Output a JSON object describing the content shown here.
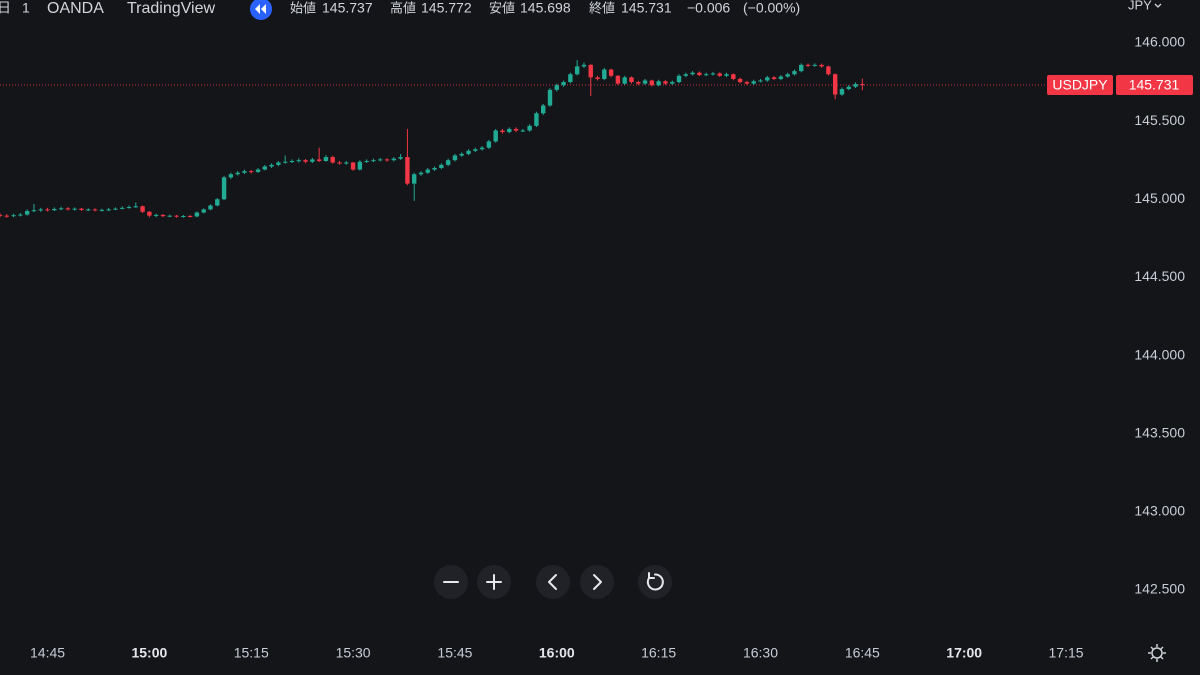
{
  "chart_data": {
    "type": "candlestick",
    "period": "日",
    "interval": "1",
    "exchange": "OANDA",
    "source": "TradingView",
    "symbol": "USDJPY",
    "currency": "JPY",
    "open_label": "始値",
    "high_label": "高値",
    "low_label": "安値",
    "close_label": "終値",
    "change": "−0.006",
    "change_percent": "(−0.00%)",
    "up_color": "#22ab94",
    "down_color": "#f23645",
    "grid": false,
    "ylim": [
      142.212,
      146.275
    ],
    "yticks": [
      {
        "value": 142.5,
        "label": "142.500"
      },
      {
        "value": 143,
        "label": "143.000"
      },
      {
        "value": 143.5,
        "label": "143.500"
      },
      {
        "value": 144,
        "label": "144.000"
      },
      {
        "value": 144.5,
        "label": "144.500"
      },
      {
        "value": 145,
        "label": "145.000"
      },
      {
        "value": 145.5,
        "label": "145.500"
      },
      {
        "value": 146,
        "label": "146.000"
      }
    ],
    "xlim": [
      "14:38",
      "17:20"
    ],
    "xticks": [
      "14:45",
      "15:00",
      "15:15",
      "15:30",
      "15:45",
      "16:00",
      "16:15",
      "16:30",
      "16:45",
      "17:00",
      "17:15"
    ],
    "x": [
      "14:38",
      "14:39",
      "14:40",
      "14:41",
      "14:42",
      "14:43",
      "14:44",
      "14:45",
      "14:46",
      "14:47",
      "14:48",
      "14:49",
      "14:50",
      "14:51",
      "14:52",
      "14:53",
      "14:54",
      "14:55",
      "14:56",
      "14:57",
      "14:58",
      "14:59",
      "15:00",
      "15:01",
      "15:02",
      "15:03",
      "15:04",
      "15:05",
      "15:06",
      "15:07",
      "15:08",
      "15:09",
      "15:10",
      "15:11",
      "15:12",
      "15:13",
      "15:14",
      "15:15",
      "15:16",
      "15:17",
      "15:18",
      "15:19",
      "15:20",
      "15:21",
      "15:22",
      "15:23",
      "15:24",
      "15:25",
      "15:26",
      "15:27",
      "15:28",
      "15:29",
      "15:30",
      "15:31",
      "15:32",
      "15:33",
      "15:34",
      "15:35",
      "15:36",
      "15:37",
      "15:38",
      "15:39",
      "15:40",
      "15:41",
      "15:42",
      "15:43",
      "15:44",
      "15:45",
      "15:46",
      "15:47",
      "15:48",
      "15:49",
      "15:50",
      "15:51",
      "15:52",
      "15:53",
      "15:54",
      "15:55",
      "15:56",
      "15:57",
      "15:58",
      "15:59",
      "16:00",
      "16:01",
      "16:02",
      "16:03",
      "16:04",
      "16:05",
      "16:06",
      "16:07",
      "16:08",
      "16:09",
      "16:10",
      "16:11",
      "16:12",
      "16:13",
      "16:14",
      "16:15",
      "16:16",
      "16:17",
      "16:18",
      "16:19",
      "16:20",
      "16:21",
      "16:22",
      "16:23",
      "16:24",
      "16:25",
      "16:26",
      "16:27",
      "16:28",
      "16:29",
      "16:30",
      "16:31",
      "16:32",
      "16:33",
      "16:34",
      "16:35",
      "16:36",
      "16:37",
      "16:38",
      "16:39",
      "16:40",
      "16:41",
      "16:42",
      "16:43",
      "16:44",
      "16:45"
    ],
    "open": [
      144.9,
      144.895,
      144.892,
      144.898,
      144.902,
      144.925,
      144.93,
      144.935,
      144.93,
      144.938,
      144.942,
      144.935,
      144.94,
      144.932,
      144.935,
      144.93,
      144.932,
      144.935,
      144.94,
      144.945,
      144.95,
      144.955,
      144.92,
      144.895,
      144.9,
      144.892,
      144.895,
      144.89,
      144.893,
      144.89,
      144.915,
      144.935,
      144.96,
      145.0,
      145.14,
      145.16,
      145.17,
      145.18,
      145.175,
      145.19,
      145.21,
      145.22,
      145.235,
      145.24,
      145.245,
      145.25,
      145.24,
      145.255,
      145.245,
      145.27,
      145.235,
      145.23,
      145.235,
      145.19,
      145.24,
      145.245,
      145.25,
      145.255,
      145.25,
      145.26,
      145.27,
      145.1,
      145.16,
      145.17,
      145.19,
      145.2,
      145.22,
      145.25,
      145.28,
      145.29,
      145.31,
      145.32,
      145.33,
      145.37,
      145.44,
      145.43,
      145.45,
      145.44,
      145.44,
      145.47,
      145.55,
      145.6,
      145.7,
      145.73,
      145.75,
      145.8,
      145.85,
      145.86,
      145.78,
      145.77,
      145.83,
      145.79,
      145.74,
      145.78,
      145.75,
      145.74,
      145.76,
      145.73,
      145.755,
      145.74,
      145.75,
      145.79,
      145.8,
      145.81,
      145.795,
      145.8,
      145.805,
      145.79,
      145.8,
      145.77,
      145.75,
      145.74,
      145.755,
      145.76,
      145.78,
      145.77,
      145.785,
      145.8,
      145.82,
      145.86,
      145.855,
      145.86,
      145.85,
      145.8,
      145.67,
      145.705,
      145.72,
      145.737
    ],
    "high": [
      144.91,
      144.905,
      144.908,
      144.912,
      144.935,
      144.97,
      144.945,
      144.945,
      144.948,
      144.952,
      144.95,
      144.948,
      144.945,
      144.942,
      144.942,
      144.94,
      144.945,
      144.948,
      144.955,
      144.96,
      144.98,
      144.96,
      144.925,
      144.908,
      144.905,
      144.902,
      144.9,
      144.9,
      144.9,
      144.922,
      144.942,
      144.968,
      145.008,
      145.15,
      145.17,
      145.18,
      145.19,
      145.188,
      145.2,
      145.22,
      145.23,
      145.245,
      145.28,
      145.255,
      145.262,
      145.258,
      145.265,
      145.33,
      145.282,
      145.278,
      145.245,
      145.245,
      145.24,
      145.25,
      145.255,
      145.26,
      145.265,
      145.262,
      145.27,
      145.29,
      145.45,
      145.17,
      145.18,
      145.2,
      145.21,
      145.23,
      145.26,
      145.29,
      145.3,
      145.32,
      145.33,
      145.34,
      145.38,
      145.45,
      145.45,
      145.46,
      145.46,
      145.45,
      145.48,
      145.56,
      145.61,
      145.71,
      145.74,
      145.76,
      145.81,
      145.89,
      145.875,
      145.865,
      145.79,
      145.84,
      145.835,
      145.795,
      145.79,
      145.785,
      145.758,
      145.77,
      145.765,
      145.765,
      145.762,
      145.76,
      145.8,
      145.81,
      145.82,
      145.818,
      145.81,
      145.815,
      145.812,
      145.81,
      145.805,
      145.778,
      145.758,
      145.765,
      145.77,
      145.79,
      145.788,
      145.795,
      145.81,
      145.83,
      145.87,
      145.868,
      145.87,
      145.868,
      145.855,
      145.805,
      145.715,
      145.73,
      145.748,
      145.772
    ],
    "low": [
      144.885,
      144.882,
      144.885,
      144.89,
      144.895,
      144.918,
      144.92,
      144.922,
      144.925,
      144.93,
      144.928,
      144.928,
      144.925,
      144.925,
      144.922,
      144.922,
      144.925,
      144.93,
      144.935,
      144.94,
      144.945,
      144.912,
      144.885,
      144.885,
      144.885,
      144.885,
      144.882,
      144.882,
      144.883,
      144.885,
      144.91,
      144.93,
      144.955,
      144.995,
      145.13,
      145.152,
      145.162,
      145.165,
      145.168,
      145.185,
      145.2,
      145.212,
      145.228,
      145.232,
      145.235,
      145.23,
      145.232,
      145.238,
      145.24,
      145.228,
      145.222,
      145.222,
      145.182,
      145.185,
      145.232,
      145.238,
      145.242,
      145.24,
      145.242,
      145.252,
      145.09,
      144.99,
      145.15,
      145.162,
      145.182,
      145.192,
      145.212,
      145.242,
      145.272,
      145.282,
      145.302,
      145.312,
      145.322,
      145.362,
      145.42,
      145.422,
      145.43,
      145.43,
      145.432,
      145.462,
      145.54,
      145.592,
      145.69,
      145.72,
      145.742,
      145.792,
      145.84,
      145.66,
      145.76,
      145.762,
      145.78,
      145.73,
      145.732,
      145.74,
      145.73,
      145.732,
      145.722,
      145.722,
      145.732,
      145.732,
      145.742,
      145.782,
      145.792,
      145.788,
      145.788,
      145.792,
      145.782,
      145.782,
      145.762,
      145.742,
      145.732,
      145.732,
      145.748,
      145.752,
      145.762,
      145.762,
      145.778,
      145.792,
      145.812,
      145.845,
      145.848,
      145.842,
      145.792,
      145.64,
      145.662,
      145.698,
      145.712,
      145.698
    ],
    "close": [
      144.895,
      144.892,
      144.898,
      144.902,
      144.925,
      144.93,
      144.935,
      144.93,
      144.938,
      144.942,
      144.935,
      144.94,
      144.932,
      144.935,
      144.93,
      144.932,
      144.935,
      144.94,
      144.945,
      144.95,
      144.955,
      144.92,
      144.895,
      144.9,
      144.892,
      144.895,
      144.89,
      144.893,
      144.89,
      144.915,
      144.935,
      144.96,
      145.0,
      145.14,
      145.16,
      145.17,
      145.18,
      145.175,
      145.19,
      145.21,
      145.22,
      145.235,
      145.24,
      145.245,
      145.25,
      145.24,
      145.255,
      145.245,
      145.27,
      145.235,
      145.23,
      145.235,
      145.19,
      145.24,
      145.245,
      145.25,
      145.255,
      145.25,
      145.26,
      145.27,
      145.1,
      145.16,
      145.17,
      145.19,
      145.2,
      145.22,
      145.25,
      145.28,
      145.29,
      145.31,
      145.32,
      145.33,
      145.37,
      145.44,
      145.43,
      145.45,
      145.44,
      145.44,
      145.47,
      145.55,
      145.6,
      145.7,
      145.73,
      145.75,
      145.8,
      145.85,
      145.86,
      145.78,
      145.77,
      145.83,
      145.79,
      145.74,
      145.78,
      145.75,
      145.74,
      145.76,
      145.73,
      145.755,
      145.74,
      145.75,
      145.79,
      145.8,
      145.81,
      145.795,
      145.8,
      145.805,
      145.79,
      145.8,
      145.77,
      145.75,
      145.74,
      145.755,
      145.76,
      145.78,
      145.77,
      145.785,
      145.8,
      145.82,
      145.86,
      145.855,
      145.86,
      145.85,
      145.8,
      145.67,
      145.705,
      145.72,
      145.737,
      145.731
    ]
  }
}
